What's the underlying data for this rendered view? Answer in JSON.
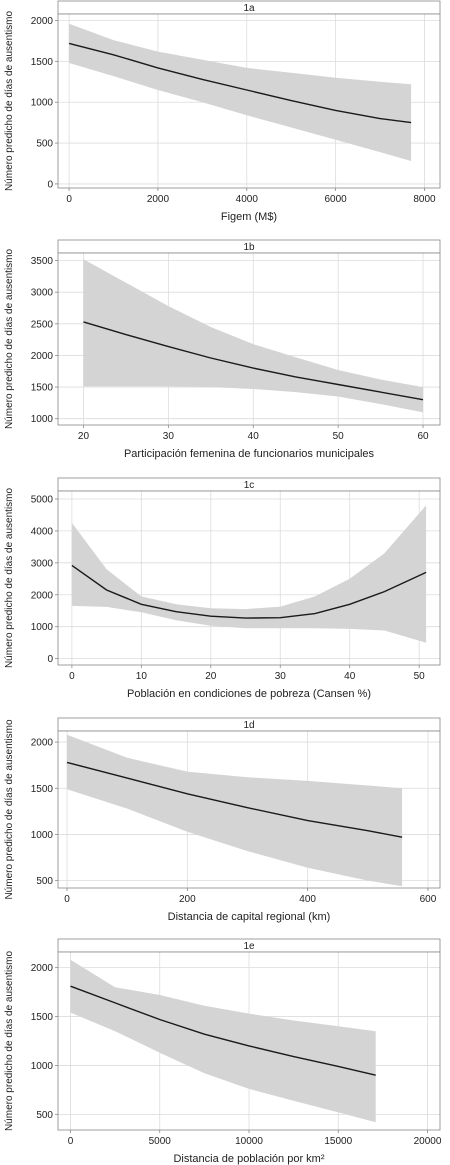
{
  "chart_data": [
    {
      "type": "line",
      "title": "1a",
      "xlabel": "Figem (M$)",
      "ylabel": "Número predicho de días de ausentismo",
      "xlim": [
        -250,
        8350
      ],
      "ylim": [
        -50,
        2080
      ],
      "xticks": [
        0,
        2000,
        4000,
        6000,
        8000
      ],
      "yticks": [
        0,
        500,
        1000,
        1500,
        2000
      ],
      "grid": true,
      "series": [
        {
          "x": [
            0,
            1000,
            2000,
            3000,
            4000,
            5000,
            6000,
            7000,
            7700
          ],
          "y": [
            1720,
            1580,
            1420,
            1280,
            1150,
            1020,
            900,
            800,
            750
          ]
        }
      ],
      "band": {
        "x": [
          0,
          1000,
          2000,
          3000,
          4000,
          5000,
          6000,
          7000,
          7700
        ],
        "lower": [
          1480,
          1320,
          1150,
          1000,
          840,
          690,
          540,
          390,
          280
        ],
        "upper": [
          1960,
          1760,
          1620,
          1520,
          1420,
          1360,
          1300,
          1250,
          1220
        ]
      }
    },
    {
      "type": "line",
      "title": "1b",
      "xlabel": "Participación femenina de funcionarios municipales",
      "ylabel": "Número predicho de días de ausentismo",
      "xlim": [
        17,
        62
      ],
      "ylim": [
        900,
        3620
      ],
      "xticks": [
        20,
        30,
        40,
        50,
        60
      ],
      "yticks": [
        1000,
        1500,
        2000,
        2500,
        3000,
        3500
      ],
      "grid": true,
      "series": [
        {
          "x": [
            20,
            25,
            30,
            35,
            40,
            45,
            50,
            55,
            60
          ],
          "y": [
            2530,
            2330,
            2140,
            1960,
            1800,
            1660,
            1540,
            1420,
            1300
          ]
        }
      ],
      "band": {
        "x": [
          20,
          25,
          30,
          35,
          40,
          45,
          50,
          55,
          60
        ],
        "lower": [
          1510,
          1510,
          1510,
          1500,
          1470,
          1420,
          1350,
          1230,
          1100
        ],
        "upper": [
          3520,
          3150,
          2780,
          2450,
          2180,
          1970,
          1770,
          1620,
          1500
        ]
      }
    },
    {
      "type": "line",
      "title": "1c",
      "xlabel": "Población en condiciones de pobreza (Cansen %)",
      "ylabel": "Número predicho de días de ausentismo",
      "xlim": [
        -2,
        53
      ],
      "ylim": [
        -200,
        5250
      ],
      "xticks": [
        0,
        10,
        20,
        30,
        40,
        50
      ],
      "yticks": [
        0,
        1000,
        2000,
        3000,
        4000,
        5000
      ],
      "grid": true,
      "series": [
        {
          "x": [
            0,
            5,
            10,
            15,
            20,
            25,
            30,
            35,
            40,
            45,
            51
          ],
          "y": [
            2920,
            2150,
            1700,
            1470,
            1330,
            1270,
            1280,
            1410,
            1700,
            2100,
            2700
          ]
        }
      ],
      "band": {
        "x": [
          0,
          5,
          10,
          15,
          20,
          25,
          30,
          35,
          40,
          45,
          51
        ],
        "lower": [
          1650,
          1620,
          1450,
          1200,
          1030,
          950,
          950,
          950,
          930,
          880,
          500
        ],
        "upper": [
          4250,
          2800,
          1950,
          1700,
          1580,
          1550,
          1630,
          1950,
          2500,
          3300,
          4800
        ]
      }
    },
    {
      "type": "line",
      "title": "1d",
      "xlabel": "Distancia de capital regional (km)",
      "ylabel": "Número predicho de días de ausentismo",
      "xlim": [
        -15,
        620
      ],
      "ylim": [
        420,
        2120
      ],
      "xticks": [
        0,
        200,
        400,
        600
      ],
      "yticks": [
        500,
        1000,
        1500,
        2000
      ],
      "grid": true,
      "series": [
        {
          "x": [
            0,
            100,
            200,
            300,
            400,
            500,
            557
          ],
          "y": [
            1780,
            1610,
            1440,
            1290,
            1150,
            1040,
            970
          ]
        }
      ],
      "band": {
        "x": [
          0,
          100,
          200,
          300,
          400,
          500,
          557
        ],
        "lower": [
          1490,
          1280,
          1030,
          820,
          640,
          500,
          440
        ],
        "upper": [
          2080,
          1830,
          1680,
          1620,
          1580,
          1530,
          1500
        ]
      }
    },
    {
      "type": "line",
      "title": "1e",
      "xlabel": "Distancia de población por km²",
      "ylabel": "Número predicho de días de ausentismo",
      "xlim": [
        -700,
        20700
      ],
      "ylim": [
        340,
        2160
      ],
      "xticks": [
        0,
        5000,
        10000,
        15000,
        20000
      ],
      "yticks": [
        500,
        1000,
        1500,
        2000
      ],
      "grid": true,
      "series": [
        {
          "x": [
            0,
            2500,
            5000,
            7500,
            10000,
            12500,
            15000,
            17100
          ],
          "y": [
            1810,
            1640,
            1470,
            1320,
            1200,
            1090,
            990,
            900
          ]
        }
      ],
      "band": {
        "x": [
          0,
          2500,
          5000,
          7500,
          10000,
          12500,
          15000,
          17100
        ],
        "lower": [
          1540,
          1350,
          1130,
          920,
          760,
          640,
          520,
          420
        ],
        "upper": [
          2080,
          1800,
          1720,
          1610,
          1530,
          1460,
          1400,
          1350
        ]
      }
    }
  ],
  "colors": {
    "band": "#d4d4d4",
    "line": "#1a1a1a",
    "grid": "#dcdcdc",
    "frame": "#888888",
    "text": "#222222"
  }
}
